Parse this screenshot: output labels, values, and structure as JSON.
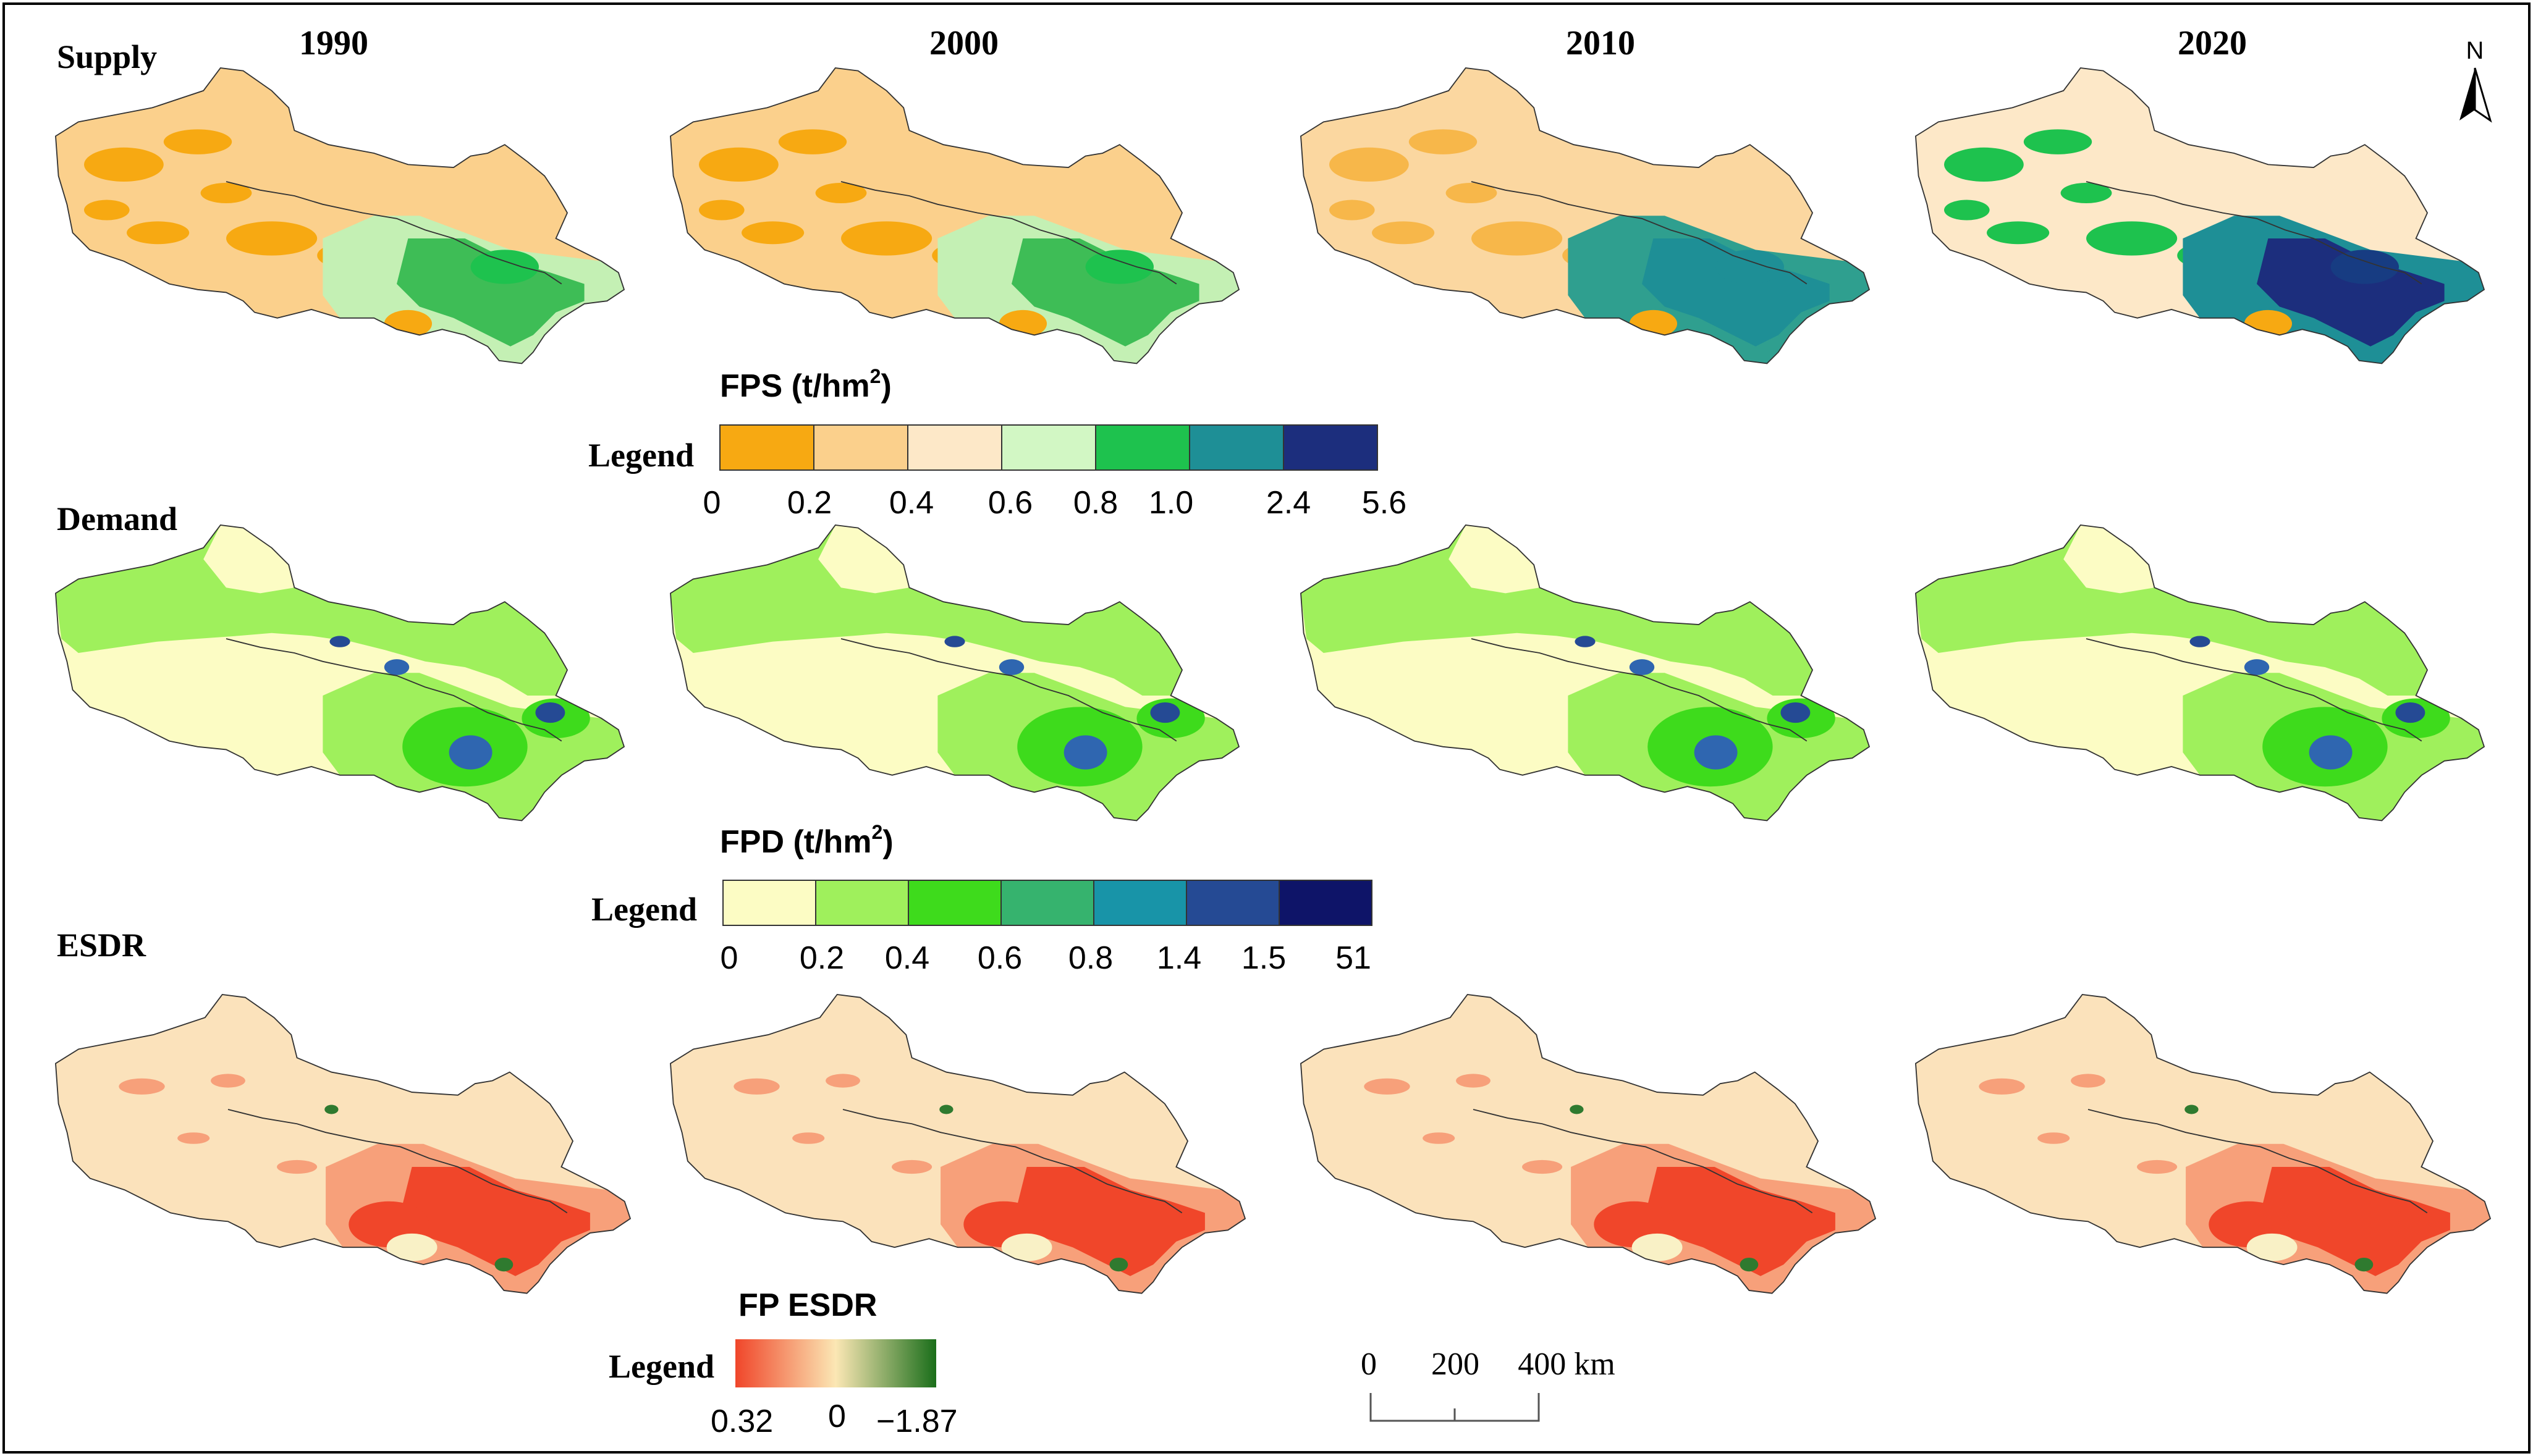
{
  "rows": [
    {
      "label": "Supply",
      "key": "supply"
    },
    {
      "label": "Demand",
      "key": "demand"
    },
    {
      "label": "ESDR",
      "key": "esdr"
    }
  ],
  "years": [
    "1990",
    "2000",
    "2010",
    "2020"
  ],
  "north_arrow": {
    "label": "N"
  },
  "legends": {
    "fps": {
      "title": "FPS (t/hm",
      "title_sup": "2",
      "title_close": ")",
      "label": "Legend",
      "ticks": [
        "0",
        "0.2",
        "0.4",
        "0.6",
        "0.8",
        "1.0",
        "2.4",
        "5.6"
      ],
      "colors": [
        "#f7a912",
        "#fbd08c",
        "#fde8c8",
        "#d2f7c4",
        "#1ec24e",
        "#1e8f96",
        "#1c2e7d"
      ]
    },
    "fpd": {
      "title": "FPD (t/hm",
      "title_sup": "2",
      "title_close": ")",
      "label": "Legend",
      "ticks": [
        "0",
        "0.2",
        "0.4",
        "0.6",
        "0.8",
        "1.4",
        "1.5",
        "51"
      ],
      "colors": [
        "#fcfcc4",
        "#9ff05c",
        "#3edb1c",
        "#36b36e",
        "#1894a8",
        "#254a94",
        "#0e1468"
      ]
    },
    "esdr": {
      "title": "FP ESDR",
      "label": "Legend",
      "ticks": [
        "0.32",
        "0",
        "−1.87"
      ],
      "colors": [
        "#f0462a",
        "#fbe7b4",
        "#1a6e1a"
      ]
    }
  },
  "scale_bar": {
    "labels": [
      "0",
      "200",
      "400 km"
    ]
  },
  "colors": {
    "supply": {
      "1990": {
        "base": "#fbd08c",
        "patch": "#f7a912",
        "east": "#c4f0b4",
        "hot": "#3ebd56",
        "deep": "#1ec24e"
      },
      "2000": {
        "base": "#fbd08c",
        "patch": "#f7a912",
        "east": "#c4f0b4",
        "hot": "#3ebd56",
        "deep": "#1ec24e"
      },
      "2010": {
        "base": "#fbd7a0",
        "patch": "#f7b74a",
        "east": "#2f9f8f",
        "hot": "#1e8f96",
        "deep": "#1e8f96"
      },
      "2020": {
        "base": "#fde8c8",
        "patch": "#1ec24e",
        "east": "#1e8f96",
        "hot": "#1c2e7d",
        "deep": "#173c82"
      }
    },
    "demand": {
      "base": "#fcfcc4",
      "north": "#9ff05c",
      "east": "#3edb1c",
      "hot": "#2f66b0",
      "deep": "#254a94"
    },
    "esdr": {
      "base": "#fbe2bb",
      "warm": "#f7a07a",
      "hot": "#f0462a",
      "green": "#2f7a2f",
      "pale": "#f9f1c6"
    },
    "outline": "#333333",
    "frame": "#000000"
  }
}
